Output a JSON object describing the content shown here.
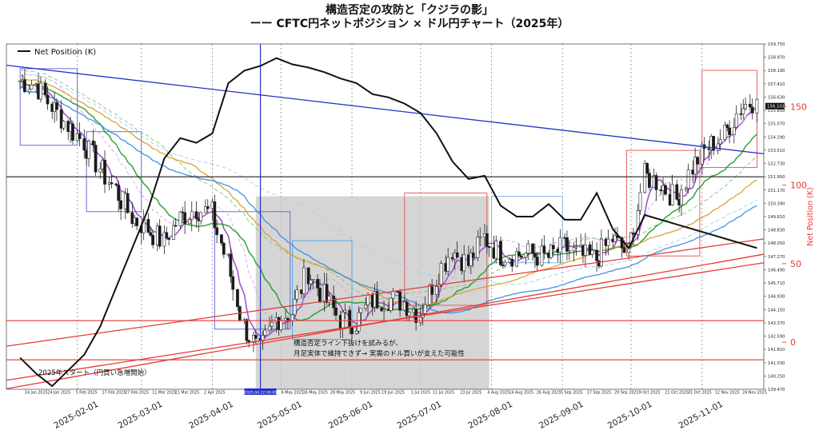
{
  "title": {
    "line1": "構造否定の攻防と「クジラの影」",
    "line2": "ーー CFTC円ネットポジション × ドル円チャート（2025年）"
  },
  "chart_data": {
    "type": "line",
    "title": "構造否定の攻防と「クジラの影」 ーー CFTC円ネットポジション × ドル円チャート（2025年）",
    "legend": [
      "Net Position (K)"
    ],
    "y2label": "Net Position (K)",
    "price_ticks": [
      "159.750",
      "158.970",
      "158.190",
      "157.410",
      "156.630",
      "155.850",
      "155.070",
      "154.290",
      "153.510",
      "152.730",
      "151.950",
      "151.170",
      "150.390",
      "149.610",
      "148.830",
      "148.050",
      "147.270",
      "146.490",
      "145.710",
      "144.930",
      "144.150",
      "143.370",
      "142.590",
      "141.810",
      "141.030",
      "140.250",
      "139.470"
    ],
    "price_range": [
      139.47,
      159.75
    ],
    "current_price_label": "156.101",
    "net_position_ticks": [
      "150",
      "100",
      "50",
      "0"
    ],
    "net_position_range": [
      -30,
      190
    ],
    "bottom_date_ticks": [
      "14 Jan 2025",
      "24 Jan 2025",
      "5 Feb 2025",
      "17 Feb 2025",
      "27 Feb 2025",
      "11 Mar 2025",
      "21 Mar 2025",
      "2 Apr 2025",
      "2025.04.22 00:00",
      "6 May 2025",
      "16 May 2025",
      "28 May 2025",
      "9 Jun 2025",
      "19 Jun 2025",
      "1 Jul 2025",
      "11 Jul 2025",
      "23 Jul 2025",
      "4 Aug 2025",
      "14 Aug 2025",
      "26 Aug 2025",
      "5 Sep 2025",
      "17 Sep 2025",
      "29 Sep 2025",
      "9 Oct 2025",
      "21 Oct 2025",
      "31 Oct 2025",
      "12 Nov 2025",
      "24 Nov 2025"
    ],
    "x_month_labels": [
      "2025-02-01",
      "2025-03-01",
      "2025-04-01",
      "2025-05-01",
      "2025-06-01",
      "2025-07-01",
      "2025-08-01",
      "2025-09-01",
      "2025-10-01",
      "2025-11-01"
    ],
    "net_position_series": [
      {
        "x": "2025-01-07",
        "y": -10
      },
      {
        "x": "2025-01-14",
        "y": -20
      },
      {
        "x": "2025-01-21",
        "y": -28
      },
      {
        "x": "2025-01-28",
        "y": -18
      },
      {
        "x": "2025-02-04",
        "y": -8
      },
      {
        "x": "2025-02-11",
        "y": 10
      },
      {
        "x": "2025-02-18",
        "y": 35
      },
      {
        "x": "2025-02-25",
        "y": 60
      },
      {
        "x": "2025-03-04",
        "y": 85
      },
      {
        "x": "2025-03-11",
        "y": 117
      },
      {
        "x": "2025-03-18",
        "y": 130
      },
      {
        "x": "2025-03-25",
        "y": 127
      },
      {
        "x": "2025-04-01",
        "y": 133
      },
      {
        "x": "2025-04-08",
        "y": 165
      },
      {
        "x": "2025-04-15",
        "y": 173
      },
      {
        "x": "2025-04-22",
        "y": 176
      },
      {
        "x": "2025-04-29",
        "y": 181
      },
      {
        "x": "2025-05-06",
        "y": 177
      },
      {
        "x": "2025-05-13",
        "y": 175
      },
      {
        "x": "2025-05-20",
        "y": 172
      },
      {
        "x": "2025-05-27",
        "y": 168
      },
      {
        "x": "2025-06-03",
        "y": 165
      },
      {
        "x": "2025-06-10",
        "y": 158
      },
      {
        "x": "2025-06-17",
        "y": 156
      },
      {
        "x": "2025-06-24",
        "y": 152
      },
      {
        "x": "2025-07-01",
        "y": 146
      },
      {
        "x": "2025-07-08",
        "y": 133
      },
      {
        "x": "2025-07-15",
        "y": 115
      },
      {
        "x": "2025-07-22",
        "y": 104
      },
      {
        "x": "2025-07-29",
        "y": 106
      },
      {
        "x": "2025-08-05",
        "y": 87
      },
      {
        "x": "2025-08-12",
        "y": 80
      },
      {
        "x": "2025-08-19",
        "y": 80
      },
      {
        "x": "2025-08-26",
        "y": 88
      },
      {
        "x": "2025-09-02",
        "y": 78
      },
      {
        "x": "2025-09-09",
        "y": 78
      },
      {
        "x": "2025-09-16",
        "y": 95
      },
      {
        "x": "2025-09-23",
        "y": 72
      },
      {
        "x": "2025-09-30",
        "y": 60
      },
      {
        "x": "2025-10-07",
        "y": 81
      },
      {
        "x": "2025-10-14",
        "y": 78
      },
      {
        "x": "2025-10-21",
        "y": 75
      },
      {
        "x": "2025-10-28",
        "y": 72
      },
      {
        "x": "2025-11-04",
        "y": 69
      },
      {
        "x": "2025-11-11",
        "y": 66
      },
      {
        "x": "2025-11-18",
        "y": 63
      },
      {
        "x": "2025-11-25",
        "y": 60
      }
    ],
    "price_series": [
      {
        "x": "2025-01-07",
        "y": 157.6
      },
      {
        "x": "2025-01-14",
        "y": 157.4
      },
      {
        "x": "2025-01-21",
        "y": 156.1
      },
      {
        "x": "2025-01-28",
        "y": 155.0
      },
      {
        "x": "2025-02-04",
        "y": 154.0
      },
      {
        "x": "2025-02-11",
        "y": 152.5
      },
      {
        "x": "2025-02-18",
        "y": 151.2
      },
      {
        "x": "2025-02-25",
        "y": 149.6
      },
      {
        "x": "2025-03-04",
        "y": 148.9
      },
      {
        "x": "2025-03-11",
        "y": 148.1
      },
      {
        "x": "2025-03-18",
        "y": 149.5
      },
      {
        "x": "2025-03-25",
        "y": 150.1
      },
      {
        "x": "2025-04-01",
        "y": 149.8
      },
      {
        "x": "2025-04-08",
        "y": 146.9
      },
      {
        "x": "2025-04-15",
        "y": 143.2
      },
      {
        "x": "2025-04-22",
        "y": 141.6
      },
      {
        "x": "2025-04-29",
        "y": 143.6
      },
      {
        "x": "2025-05-06",
        "y": 144.0
      },
      {
        "x": "2025-05-13",
        "y": 146.4
      },
      {
        "x": "2025-05-20",
        "y": 144.9
      },
      {
        "x": "2025-05-27",
        "y": 143.6
      },
      {
        "x": "2025-06-03",
        "y": 143.4
      },
      {
        "x": "2025-06-10",
        "y": 144.7
      },
      {
        "x": "2025-06-17",
        "y": 144.8
      },
      {
        "x": "2025-06-24",
        "y": 144.6
      },
      {
        "x": "2025-07-01",
        "y": 143.9
      },
      {
        "x": "2025-07-08",
        "y": 146.0
      },
      {
        "x": "2025-07-15",
        "y": 147.7
      },
      {
        "x": "2025-07-22",
        "y": 146.8
      },
      {
        "x": "2025-07-29",
        "y": 148.4
      },
      {
        "x": "2025-08-05",
        "y": 147.4
      },
      {
        "x": "2025-08-12",
        "y": 147.4
      },
      {
        "x": "2025-08-19",
        "y": 147.4
      },
      {
        "x": "2025-08-26",
        "y": 147.2
      },
      {
        "x": "2025-09-02",
        "y": 147.8
      },
      {
        "x": "2025-09-09",
        "y": 147.3
      },
      {
        "x": "2025-09-16",
        "y": 147.1
      },
      {
        "x": "2025-09-23",
        "y": 148.3
      },
      {
        "x": "2025-09-30",
        "y": 147.4
      },
      {
        "x": "2025-10-07",
        "y": 152.0
      },
      {
        "x": "2025-10-14",
        "y": 151.6
      },
      {
        "x": "2025-10-21",
        "y": 150.6
      },
      {
        "x": "2025-10-28",
        "y": 152.5
      },
      {
        "x": "2025-11-04",
        "y": 153.7
      },
      {
        "x": "2025-11-11",
        "y": 154.4
      },
      {
        "x": "2025-11-18",
        "y": 156.0
      },
      {
        "x": "2025-11-25",
        "y": 156.5
      }
    ],
    "annotations": {
      "callout_line1": "構造否定ライン下抜けを試みるが、",
      "callout_line2": "月足実体で維持できず→ 実需のドル買いが支えた可能性",
      "start_label": "2025年スタート（円買い急増開始）"
    },
    "colors": {
      "net_position": "#111111",
      "red_lines": "#e53935",
      "blue_trend": "#2433c8",
      "shade": "#c7c7c7",
      "ma_purple": "#9b3fc8",
      "ma_green": "#1f9a2a",
      "ma_orange": "#d6a12a",
      "ma_blue": "#3b8de0",
      "bull_candle": "#ffffff",
      "bear_candle": "#1a1a1a"
    }
  }
}
